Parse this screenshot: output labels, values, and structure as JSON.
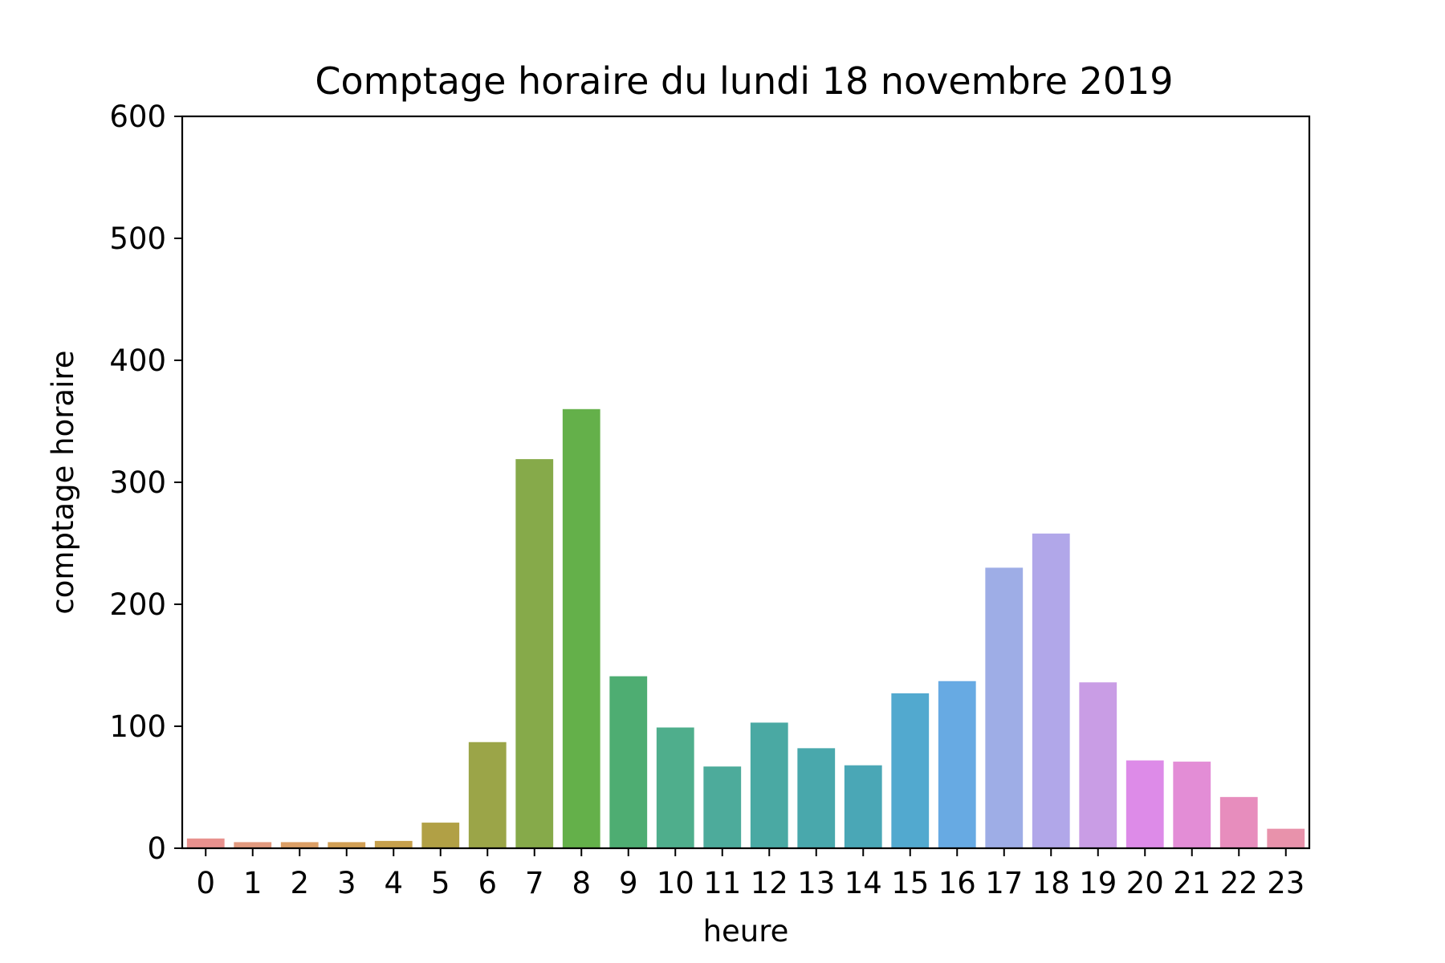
{
  "chart_data": {
    "type": "bar",
    "title": "Comptage horaire du lundi 18 novembre 2019",
    "xlabel": "heure",
    "ylabel": "comptage horaire",
    "ylim": [
      0,
      600
    ],
    "yticks": [
      "0",
      "100",
      "200",
      "300",
      "400",
      "500",
      "600"
    ],
    "categories": [
      "0",
      "1",
      "2",
      "3",
      "4",
      "5",
      "6",
      "7",
      "8",
      "9",
      "10",
      "11",
      "12",
      "13",
      "14",
      "15",
      "16",
      "17",
      "18",
      "19",
      "20",
      "21",
      "22",
      "23"
    ],
    "values": [
      8,
      5,
      5,
      5,
      6,
      21,
      87,
      319,
      360,
      141,
      99,
      67,
      103,
      82,
      68,
      127,
      137,
      230,
      258,
      136,
      72,
      71,
      42,
      16
    ],
    "colors": [
      "#e8918e",
      "#e29a7f",
      "#dc9f66",
      "#d19f55",
      "#c6a04d",
      "#b1a045",
      "#9ba548",
      "#86aa4a",
      "#64b04a",
      "#4ead72",
      "#4fae8c",
      "#4dab9b",
      "#4aa9a3",
      "#49a8ac",
      "#4aa7b6",
      "#52a9cf",
      "#67aae3",
      "#9eade6",
      "#b1a7e9",
      "#c99de5",
      "#dd8be8",
      "#e38dd6",
      "#e78dbd",
      "#e892ab"
    ],
    "grid": false,
    "legend": "none"
  }
}
